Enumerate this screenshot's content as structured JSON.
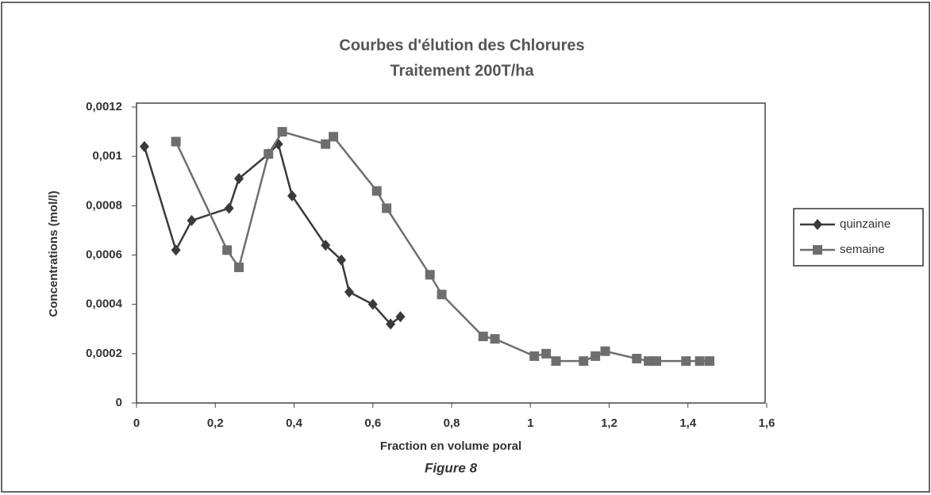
{
  "chart_data": {
    "type": "line",
    "title": "Courbes d'élution des Chlorures",
    "subtitle": "Traitement 200T/ha",
    "xlabel": "Fraction en volume poral",
    "ylabel": "Concentrations (mol/l)",
    "caption": "Figure 8",
    "xlim": [
      0,
      1.6
    ],
    "xticks": [
      0,
      {
        "value": 0.2,
        "label": "0,2"
      },
      {
        "value": 0.4,
        "label": "0,4"
      },
      {
        "value": 0.6,
        "label": "0,6"
      },
      {
        "value": 0.8,
        "label": "0,8"
      },
      1,
      {
        "value": 1.2,
        "label": "1,2"
      },
      {
        "value": 1.4,
        "label": "1,4"
      },
      {
        "value": 1.6,
        "label": "1,6"
      }
    ],
    "ylim": [
      0,
      0.0012
    ],
    "yticks": [
      0,
      {
        "value": 0.0002,
        "label": "0,0002"
      },
      {
        "value": 0.0004,
        "label": "0,0004"
      },
      {
        "value": 0.0006,
        "label": "0,0006"
      },
      {
        "value": 0.0008,
        "label": "0,0008"
      },
      {
        "value": 0.001,
        "label": "0,001"
      },
      {
        "value": 0.0012,
        "label": "0,0012"
      }
    ],
    "legend": "right",
    "series": [
      {
        "name": "quinzaine",
        "color": "#3a3a3a",
        "marker": "diamond",
        "x": [
          0.02,
          0.1,
          0.14,
          0.235,
          0.26,
          0.335,
          0.36,
          0.395,
          0.48,
          0.52,
          0.54,
          0.6,
          0.645,
          0.67
        ],
        "values": [
          0.00104,
          0.00062,
          0.00074,
          0.00079,
          0.00091,
          0.00101,
          0.00105,
          0.00084,
          0.00064,
          0.00058,
          0.00045,
          0.0004,
          0.00032,
          0.00035
        ]
      },
      {
        "name": "semaine",
        "color": "#6e6e6e",
        "marker": "square",
        "x": [
          0.1,
          0.23,
          0.26,
          0.335,
          0.37,
          0.48,
          0.5,
          0.61,
          0.635,
          0.745,
          0.775,
          0.88,
          0.91,
          1.01,
          1.04,
          1.065,
          1.135,
          1.165,
          1.19,
          1.27,
          1.3,
          1.32,
          1.395,
          1.43,
          1.455
        ],
        "values": [
          0.00106,
          0.00062,
          0.00055,
          0.00101,
          0.0011,
          0.00105,
          0.00108,
          0.00086,
          0.00079,
          0.00052,
          0.00044,
          0.00027,
          0.00026,
          0.00019,
          0.0002,
          0.00017,
          0.00017,
          0.00019,
          0.00021,
          0.00018,
          0.00017,
          0.00017,
          0.00017,
          0.00017,
          0.00017
        ]
      }
    ]
  }
}
